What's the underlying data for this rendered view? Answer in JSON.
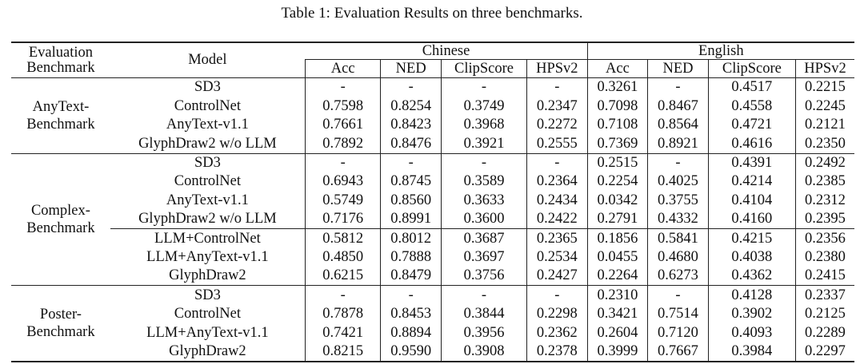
{
  "caption": "Table 1: Evaluation Results on three benchmarks.",
  "header": {
    "bench_line1": "Evaluation",
    "bench_line2": "Benchmark",
    "model": "Model",
    "chinese": "Chinese",
    "english": "English",
    "metrics": [
      "Acc",
      "NED",
      "ClipScore",
      "HPSv2",
      "Acc",
      "NED",
      "ClipScore",
      "HPSv2"
    ]
  },
  "groups": [
    {
      "line1": "AnyText-",
      "line2": "Benchmark",
      "rows": [
        {
          "model": "SD3",
          "model_bold": false,
          "rule": false,
          "values": [
            "-",
            "-",
            "-",
            "-",
            "0.3261",
            "-",
            "0.4517",
            "0.2215"
          ],
          "bold": [
            false,
            false,
            false,
            false,
            false,
            false,
            false,
            false
          ]
        },
        {
          "model": "ControlNet",
          "model_bold": false,
          "rule": false,
          "values": [
            "0.7598",
            "0.8254",
            "0.3749",
            "0.2347",
            "0.7098",
            "0.8467",
            "0.4558",
            "0.2245"
          ],
          "bold": [
            false,
            false,
            false,
            false,
            false,
            false,
            false,
            false
          ]
        },
        {
          "model": "AnyText-v1.1",
          "model_bold": false,
          "rule": false,
          "values": [
            "0.7661",
            "0.8423",
            "0.3968",
            "0.2272",
            "0.7108",
            "0.8564",
            "0.4721",
            "0.2121"
          ],
          "bold": [
            false,
            false,
            true,
            false,
            false,
            false,
            true,
            false
          ]
        },
        {
          "model": "GlyphDraw2 w/o LLM",
          "model_bold": false,
          "rule": false,
          "values": [
            "0.7892",
            "0.8476",
            "0.3921",
            "0.2555",
            "0.7369",
            "0.8921",
            "0.4616",
            "0.2350"
          ],
          "bold": [
            true,
            true,
            false,
            true,
            true,
            true,
            false,
            true
          ]
        }
      ]
    },
    {
      "line1": "Complex-",
      "line2": "Benchmark",
      "rows": [
        {
          "model": "SD3",
          "model_bold": false,
          "rule": false,
          "values": [
            "-",
            "-",
            "-",
            "-",
            "0.2515",
            "-",
            "0.4391",
            "0.2492"
          ],
          "bold": [
            false,
            false,
            false,
            false,
            false,
            false,
            true,
            true
          ]
        },
        {
          "model": "ControlNet",
          "model_bold": false,
          "rule": false,
          "values": [
            "0.6943",
            "0.8745",
            "0.3589",
            "0.2364",
            "0.2254",
            "0.4025",
            "0.4214",
            "0.2385"
          ],
          "bold": [
            false,
            false,
            false,
            false,
            false,
            false,
            false,
            false
          ]
        },
        {
          "model": "AnyText-v1.1",
          "model_bold": false,
          "rule": false,
          "values": [
            "0.5749",
            "0.8560",
            "0.3633",
            "0.2434",
            "0.0342",
            "0.3755",
            "0.4104",
            "0.2312"
          ],
          "bold": [
            false,
            false,
            true,
            true,
            false,
            false,
            false,
            false
          ]
        },
        {
          "model": "GlyphDraw2 w/o LLM",
          "model_bold": false,
          "rule": false,
          "values": [
            "0.7176",
            "0.8991",
            "0.3600",
            "0.2422",
            "0.2791",
            "0.4332",
            "0.4160",
            "0.2395"
          ],
          "bold": [
            true,
            true,
            false,
            false,
            true,
            false,
            false,
            false
          ]
        },
        {
          "model": "LLM+ControlNet",
          "model_bold": false,
          "rule": true,
          "values": [
            "0.5812",
            "0.8012",
            "0.3687",
            "0.2365",
            "0.1856",
            "0.5841",
            "0.4215",
            "0.2356"
          ],
          "bold": [
            false,
            false,
            false,
            false,
            false,
            false,
            false,
            false
          ]
        },
        {
          "model": "LLM+AnyText-v1.1",
          "model_bold": false,
          "rule": false,
          "values": [
            "0.4850",
            "0.7888",
            "0.3697",
            "0.2534",
            "0.0455",
            "0.4680",
            "0.4038",
            "0.2380"
          ],
          "bold": [
            false,
            false,
            false,
            true,
            false,
            false,
            false,
            false
          ]
        },
        {
          "model": "GlyphDraw2",
          "model_bold": true,
          "rule": false,
          "values": [
            "0.6215",
            "0.8479",
            "0.3756",
            "0.2427",
            "0.2264",
            "0.6273",
            "0.4362",
            "0.2415"
          ],
          "bold": [
            true,
            true,
            true,
            false,
            true,
            true,
            false,
            false
          ]
        }
      ]
    },
    {
      "line1": "Poster-",
      "line2": "Benchmark",
      "rows": [
        {
          "model": "SD3",
          "model_bold": false,
          "rule": false,
          "values": [
            "-",
            "-",
            "-",
            "-",
            "0.2310",
            "-",
            "0.4128",
            "0.2337"
          ],
          "bold": [
            false,
            false,
            false,
            false,
            false,
            false,
            true,
            true
          ]
        },
        {
          "model": "ControlNet",
          "model_bold": false,
          "rule": false,
          "values": [
            "0.7878",
            "0.8453",
            "0.3844",
            "0.2298",
            "0.3421",
            "0.7514",
            "0.3902",
            "0.2125"
          ],
          "bold": [
            false,
            false,
            false,
            false,
            false,
            false,
            false,
            false
          ]
        },
        {
          "model": "LLM+AnyText-v1.1",
          "model_bold": false,
          "rule": false,
          "values": [
            "0.7421",
            "0.8894",
            "0.3956",
            "0.2362",
            "0.2604",
            "0.7120",
            "0.4093",
            "0.2289"
          ],
          "bold": [
            false,
            false,
            true,
            false,
            false,
            false,
            false,
            false
          ]
        },
        {
          "model": "GlyphDraw2",
          "model_bold": true,
          "rule": false,
          "values": [
            "0.8215",
            "0.9590",
            "0.3908",
            "0.2378",
            "0.3999",
            "0.7667",
            "0.3984",
            "0.2297"
          ],
          "bold": [
            true,
            true,
            false,
            true,
            true,
            true,
            false,
            false
          ]
        }
      ]
    }
  ]
}
